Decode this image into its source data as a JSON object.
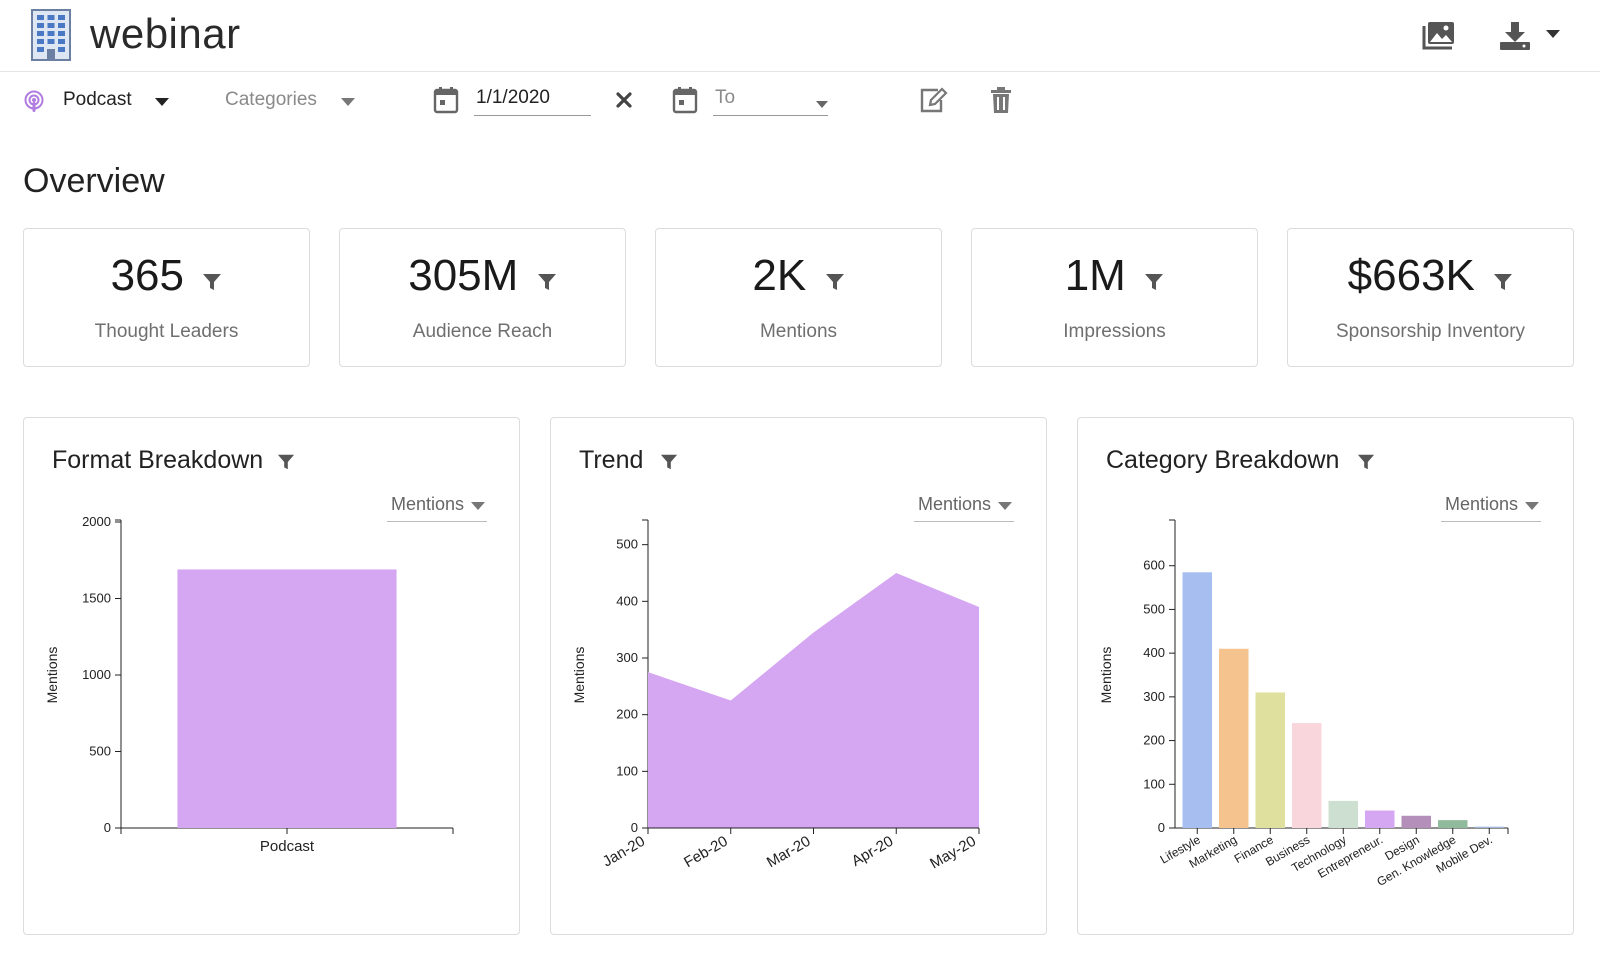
{
  "app": {
    "title": "webinar"
  },
  "header": {
    "icons": [
      "building-icon",
      "images-icon",
      "download-icon"
    ]
  },
  "filters": {
    "format": {
      "value": "Podcast",
      "icon": "podcast-icon"
    },
    "categories": {
      "placeholder": "Categories"
    },
    "date_from": {
      "value": "1/1/2020"
    },
    "date_to": {
      "placeholder": "To"
    }
  },
  "overview": {
    "title": "Overview",
    "kpis": [
      {
        "value": "365",
        "label": "Thought Leaders"
      },
      {
        "value": "305M",
        "label": "Audience Reach"
      },
      {
        "value": "2K",
        "label": "Mentions"
      },
      {
        "value": "1M",
        "label": "Impressions"
      },
      {
        "value": "$663K",
        "label": "Sponsorship Inventory"
      }
    ]
  },
  "colors": {
    "accent_purple": "#d5a6f1",
    "icon_gray": "#555555",
    "category_colors": [
      "#a7bff0",
      "#f5c38e",
      "#dfe09d",
      "#f9d6dc",
      "#cddfd0",
      "#d5a6f1",
      "#b38fb9",
      "#8fba9b",
      "#9fb6d9"
    ]
  },
  "cards": [
    {
      "title": "Format Breakdown",
      "metric": "Mentions"
    },
    {
      "title": "Trend",
      "metric": "Mentions"
    },
    {
      "title": "Category Breakdown",
      "metric": "Mentions"
    }
  ],
  "chart_data": [
    {
      "type": "bar",
      "title": "Format Breakdown",
      "categories": [
        "Podcast"
      ],
      "values": [
        1690
      ],
      "ylabel": "Mentions",
      "xlabel": "",
      "ylim": [
        0,
        2000
      ],
      "yticks": [
        0,
        500,
        1000,
        1500,
        2000
      ],
      "color": "#d5a6f1"
    },
    {
      "type": "area",
      "title": "Trend",
      "x": [
        "Jan-20",
        "Feb-20",
        "Mar-20",
        "Apr-20",
        "May-20"
      ],
      "values": [
        275,
        225,
        345,
        450,
        390
      ],
      "ylabel": "Mentions",
      "ylim": [
        0,
        540
      ],
      "yticks": [
        0,
        100,
        200,
        300,
        400,
        500
      ],
      "color": "#d5a6f1"
    },
    {
      "type": "bar",
      "title": "Category Breakdown",
      "categories": [
        "Lifestyle",
        "Marketing",
        "Finance",
        "Business",
        "Technology",
        "Entrepreneur.",
        "Design",
        "Gen. Knowledge",
        "Mobile Dev."
      ],
      "values": [
        585,
        410,
        310,
        240,
        62,
        40,
        28,
        18,
        3
      ],
      "ylabel": "Mentions",
      "ylim": [
        0,
        700
      ],
      "yticks": [
        0,
        100,
        200,
        300,
        400,
        500,
        600
      ]
    }
  ]
}
